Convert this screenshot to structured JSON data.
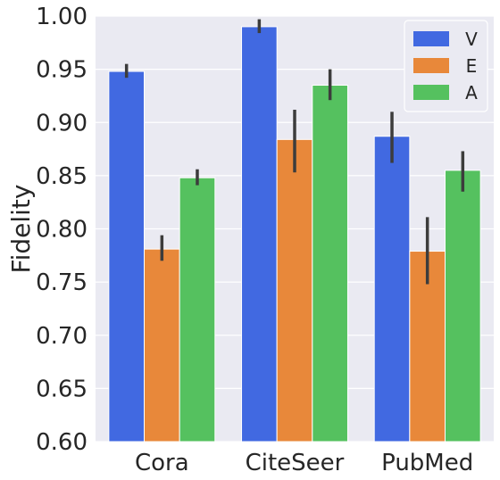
{
  "chart_data": {
    "type": "bar",
    "title": "",
    "xlabel": "",
    "ylabel": "Fidelity",
    "ylim": [
      0.6,
      1.0
    ],
    "yticks": [
      "0.60",
      "0.65",
      "0.70",
      "0.75",
      "0.80",
      "0.85",
      "0.90",
      "0.95",
      "1.00"
    ],
    "categories": [
      "Cora",
      "CiteSeer",
      "PubMed"
    ],
    "series": [
      {
        "name": "V",
        "color": "#4169e1",
        "values": [
          0.948,
          0.99,
          0.887
        ],
        "err_low": [
          0.942,
          0.984,
          0.862
        ],
        "err_high": [
          0.955,
          0.997,
          0.91
        ]
      },
      {
        "name": "E",
        "color": "#e8883a",
        "values": [
          0.781,
          0.884,
          0.779
        ],
        "err_low": [
          0.77,
          0.853,
          0.748
        ],
        "err_high": [
          0.794,
          0.912,
          0.811
        ]
      },
      {
        "name": "A",
        "color": "#55c15f",
        "values": [
          0.848,
          0.935,
          0.855
        ],
        "err_low": [
          0.841,
          0.921,
          0.835
        ],
        "err_high": [
          0.856,
          0.95,
          0.873
        ]
      }
    ],
    "grid": true,
    "legend_position": "top-right",
    "background": "#eaeaf2"
  }
}
